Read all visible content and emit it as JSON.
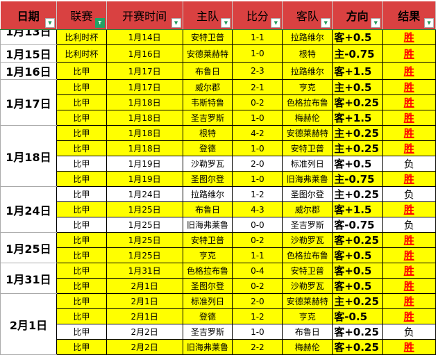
{
  "headers": [
    "日期",
    "联赛",
    "开赛时间",
    "主队",
    "比分",
    "客队",
    "方向",
    "结果"
  ],
  "colors": {
    "header": "#d94141",
    "highlight": "#ffff00",
    "win": "#ff0000",
    "filter_active": "#21a366"
  },
  "rows": [
    {
      "date": "1月13日",
      "span": 1,
      "league": "比利时杯",
      "time": "1月14日",
      "home": "安特卫普",
      "score": "1-1",
      "away": "拉路维尔",
      "dir": "客+0.5",
      "result": "胜",
      "hl": true
    },
    {
      "date": "1月15日",
      "span": 1,
      "league": "比利时杯",
      "time": "1月16日",
      "home": "安德莱赫特",
      "score": "1-0",
      "away": "根特",
      "dir": "主-0.75",
      "result": "胜",
      "hl": true
    },
    {
      "date": "1月16日",
      "span": 1,
      "league": "比甲",
      "time": "1月17日",
      "home": "布鲁日",
      "score": "2-3",
      "away": "拉路维尔",
      "dir": "客+1.5",
      "result": "胜",
      "hl": true
    },
    {
      "date": "1月17日",
      "span": 3,
      "league": "比甲",
      "time": "1月17日",
      "home": "威尔郡",
      "score": "2-1",
      "away": "亨克",
      "dir": "主+0.5",
      "result": "胜",
      "hl": true
    },
    {
      "league": "比甲",
      "time": "1月18日",
      "home": "韦斯特鲁",
      "score": "0-2",
      "away": "色格拉布鲁",
      "dir": "客+0.25",
      "result": "胜",
      "hl": true
    },
    {
      "league": "比甲",
      "time": "1月18日",
      "home": "圣吉罗斯",
      "score": "1-0",
      "away": "梅赫伦",
      "dir": "客+1.5",
      "result": "胜",
      "hl": true
    },
    {
      "date": "1月18日",
      "span": 4,
      "league": "比甲",
      "time": "1月18日",
      "home": "根特",
      "score": "4-2",
      "away": "安德莱赫特",
      "dir": "主+0.25",
      "result": "胜",
      "hl": true
    },
    {
      "league": "比甲",
      "time": "1月18日",
      "home": "登德",
      "score": "1-0",
      "away": "安特卫普",
      "dir": "主+0.25",
      "result": "胜",
      "hl": true
    },
    {
      "league": "比甲",
      "time": "1月19日",
      "home": "沙勒罗瓦",
      "score": "2-0",
      "away": "标准列日",
      "dir": "客+0.5",
      "result": "负",
      "hl": false
    },
    {
      "league": "比甲",
      "time": "1月19日",
      "home": "圣图尔登",
      "score": "1-0",
      "away": "旧海弗莱鲁",
      "dir": "主-0.75",
      "result": "胜",
      "hl": true
    },
    {
      "date": "1月24日",
      "span": 3,
      "league": "比甲",
      "time": "1月24日",
      "home": "拉路维尔",
      "score": "1-2",
      "away": "圣图尔登",
      "dir": "主+0.25",
      "result": "负",
      "hl": false
    },
    {
      "league": "比甲",
      "time": "1月25日",
      "home": "布鲁日",
      "score": "4-3",
      "away": "威尔郡",
      "dir": "客+1.5",
      "result": "胜",
      "hl": true
    },
    {
      "league": "比甲",
      "time": "1月25日",
      "home": "旧海弗莱鲁",
      "score": "0-0",
      "away": "圣吉罗斯",
      "dir": "客-0.75",
      "result": "负",
      "hl": false
    },
    {
      "date": "1月25日",
      "span": 2,
      "league": "比甲",
      "time": "1月25日",
      "home": "安特卫普",
      "score": "0-2",
      "away": "沙勒罗瓦",
      "dir": "客+0.25",
      "result": "胜",
      "hl": true
    },
    {
      "league": "比甲",
      "time": "1月25日",
      "home": "亨克",
      "score": "1-1",
      "away": "色格拉布鲁",
      "dir": "客+0.5",
      "result": "胜",
      "hl": true
    },
    {
      "date": "1月31日",
      "span": 2,
      "league": "比甲",
      "time": "1月31日",
      "home": "色格拉布鲁",
      "score": "0-4",
      "away": "安特卫普",
      "dir": "客+0.5",
      "result": "胜",
      "hl": true
    },
    {
      "league": "比甲",
      "time": "2月1日",
      "home": "圣图尔登",
      "score": "0-2",
      "away": "沙勒罗瓦",
      "dir": "客+0.5",
      "result": "胜",
      "hl": true
    },
    {
      "date": "2月1日",
      "span": 4,
      "league": "比甲",
      "time": "2月1日",
      "home": "标准列日",
      "score": "2-0",
      "away": "安德莱赫特",
      "dir": "主+0.25",
      "result": "胜",
      "hl": true
    },
    {
      "league": "比甲",
      "time": "2月1日",
      "home": "登德",
      "score": "1-2",
      "away": "亨克",
      "dir": "客-0.5",
      "result": "胜",
      "hl": true
    },
    {
      "league": "比甲",
      "time": "2月2日",
      "home": "圣吉罗斯",
      "score": "1-0",
      "away": "布鲁日",
      "dir": "客+0.25",
      "result": "负",
      "hl": false
    },
    {
      "league": "比甲",
      "time": "2月2日",
      "home": "旧海弗莱鲁",
      "score": "2-2",
      "away": "梅赫伦",
      "dir": "客+0.25",
      "result": "胜",
      "hl": true
    }
  ]
}
